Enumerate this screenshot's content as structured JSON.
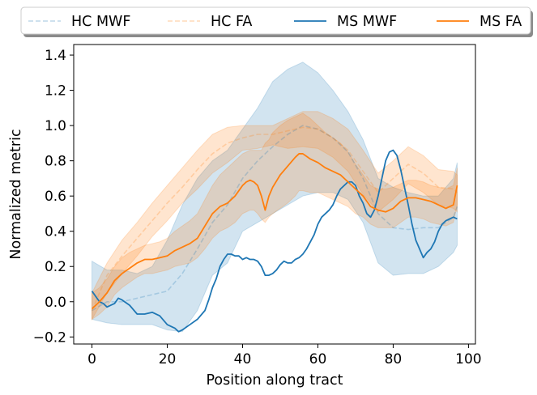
{
  "chart_data": {
    "type": "line",
    "xlabel": "Position along tract",
    "ylabel": "Normalized metric",
    "xlim": [
      -4.85,
      101.85
    ],
    "ylim": [
      -0.24,
      1.46
    ],
    "xticks": [
      "0",
      "20",
      "40",
      "60",
      "80",
      "100"
    ],
    "xtick_values": [
      0,
      20,
      40,
      60,
      80,
      100
    ],
    "yticks": [
      "−0.2",
      "0.0",
      "0.2",
      "0.4",
      "0.6",
      "0.8",
      "1.0",
      "1.2",
      "1.4"
    ],
    "ytick_values": [
      -0.2,
      0,
      0.2,
      0.4,
      0.6,
      0.8,
      1.0,
      1.2,
      1.4
    ],
    "grid": false,
    "legend_position": "top, outside axes, single row",
    "colors": {
      "blue": "#1f77b4",
      "orange": "#ff7f0e"
    },
    "series": [
      {
        "name": "HC MWF",
        "color": "#1f77b4",
        "style": "dashed",
        "line_alpha": 0.25,
        "x": [
          0,
          4,
          8,
          12,
          16,
          20,
          24,
          28,
          32,
          36,
          40,
          44,
          48,
          52,
          56,
          60,
          64,
          68,
          72,
          76,
          80,
          84,
          88,
          92,
          96,
          97
        ],
        "y": [
          -0.05,
          0.0,
          0.0,
          0.02,
          0.04,
          0.06,
          0.16,
          0.3,
          0.45,
          0.55,
          0.7,
          0.8,
          0.88,
          0.95,
          1.0,
          0.98,
          0.93,
          0.85,
          0.7,
          0.5,
          0.42,
          0.41,
          0.42,
          0.42,
          0.48,
          0.54
        ],
        "band_upper": [
          0.23,
          0.18,
          0.18,
          0.16,
          0.2,
          0.35,
          0.55,
          0.7,
          0.8,
          0.86,
          0.98,
          1.1,
          1.25,
          1.32,
          1.36,
          1.3,
          1.2,
          1.08,
          0.92,
          0.7,
          0.65,
          0.62,
          0.6,
          0.6,
          0.7,
          0.79
        ],
        "band_lower": [
          -0.1,
          -0.12,
          -0.13,
          -0.13,
          -0.13,
          -0.16,
          -0.17,
          -0.05,
          0.15,
          0.22,
          0.4,
          0.45,
          0.5,
          0.55,
          0.6,
          0.62,
          0.62,
          0.58,
          0.45,
          0.22,
          0.15,
          0.16,
          0.16,
          0.2,
          0.28,
          0.32
        ],
        "band_alpha": 0.2
      },
      {
        "name": "HC FA",
        "color": "#ff7f0e",
        "style": "dashed",
        "line_alpha": 0.25,
        "x": [
          0,
          4,
          8,
          12,
          16,
          20,
          24,
          28,
          32,
          36,
          40,
          44,
          48,
          52,
          56,
          60,
          64,
          68,
          72,
          76,
          80,
          84,
          88,
          92,
          96,
          97
        ],
        "y": [
          -0.05,
          0.15,
          0.26,
          0.36,
          0.46,
          0.56,
          0.65,
          0.75,
          0.84,
          0.9,
          0.93,
          0.95,
          0.95,
          0.97,
          0.99,
          0.98,
          0.93,
          0.86,
          0.74,
          0.62,
          0.7,
          0.78,
          0.73,
          0.65,
          0.64,
          0.62
        ],
        "band_upper": [
          0.05,
          0.22,
          0.35,
          0.45,
          0.56,
          0.66,
          0.76,
          0.86,
          0.95,
          0.99,
          1.0,
          1.0,
          1.0,
          1.04,
          1.08,
          1.08,
          1.04,
          0.98,
          0.86,
          0.73,
          0.8,
          0.88,
          0.83,
          0.75,
          0.74,
          0.72
        ],
        "band_lower": [
          -0.1,
          0.05,
          0.16,
          0.26,
          0.37,
          0.46,
          0.56,
          0.64,
          0.73,
          0.79,
          0.86,
          0.87,
          0.89,
          0.87,
          0.88,
          0.87,
          0.82,
          0.74,
          0.61,
          0.51,
          0.58,
          0.67,
          0.62,
          0.55,
          0.53,
          0.51
        ],
        "band_alpha": 0.2
      },
      {
        "name": "MS MWF",
        "color": "#1f77b4",
        "style": "solid",
        "line_alpha": 1.0,
        "x": [
          0,
          2,
          3,
          4,
          5,
          6,
          7,
          8,
          10,
          12,
          14,
          16,
          18,
          20,
          22,
          23,
          24,
          26,
          28,
          30,
          31,
          32,
          33,
          34,
          35,
          36,
          37,
          38,
          39,
          40,
          41,
          42,
          43,
          44,
          45,
          46,
          47,
          48,
          49,
          50,
          51,
          52,
          53,
          54,
          55,
          56,
          57,
          58,
          59,
          60,
          61,
          62,
          63,
          64,
          65,
          66,
          67,
          68,
          69,
          70,
          71,
          72,
          73,
          74,
          75,
          76,
          77,
          78,
          79,
          80,
          81,
          82,
          83,
          84,
          85,
          86,
          87,
          88,
          89,
          90,
          91,
          92,
          93,
          94,
          95,
          96,
          97
        ],
        "y": [
          0.06,
          0.0,
          -0.01,
          -0.03,
          -0.02,
          -0.01,
          0.02,
          0.01,
          -0.02,
          -0.07,
          -0.07,
          -0.06,
          -0.08,
          -0.13,
          -0.15,
          -0.17,
          -0.16,
          -0.13,
          -0.1,
          -0.05,
          0.01,
          0.08,
          0.13,
          0.2,
          0.24,
          0.27,
          0.27,
          0.26,
          0.26,
          0.24,
          0.25,
          0.24,
          0.24,
          0.23,
          0.2,
          0.15,
          0.15,
          0.16,
          0.18,
          0.21,
          0.23,
          0.22,
          0.22,
          0.24,
          0.25,
          0.27,
          0.3,
          0.34,
          0.38,
          0.44,
          0.48,
          0.5,
          0.52,
          0.55,
          0.6,
          0.64,
          0.66,
          0.68,
          0.68,
          0.66,
          0.6,
          0.56,
          0.5,
          0.48,
          0.52,
          0.6,
          0.7,
          0.8,
          0.85,
          0.86,
          0.83,
          0.75,
          0.65,
          0.55,
          0.44,
          0.35,
          0.3,
          0.25,
          0.28,
          0.3,
          0.34,
          0.4,
          0.44,
          0.46,
          0.47,
          0.48,
          0.47
        ],
        "band_alpha": 0
      },
      {
        "name": "MS FA",
        "color": "#ff7f0e",
        "style": "solid",
        "line_alpha": 1.0,
        "x": [
          0,
          2,
          4,
          6,
          8,
          10,
          12,
          14,
          16,
          18,
          20,
          22,
          24,
          26,
          28,
          30,
          32,
          34,
          36,
          38,
          40,
          41,
          42,
          43,
          44,
          45,
          46,
          47,
          48,
          50,
          52,
          54,
          55,
          56,
          58,
          60,
          62,
          64,
          66,
          68,
          70,
          72,
          74,
          76,
          78,
          80,
          82,
          84,
          86,
          88,
          90,
          92,
          94,
          96,
          97
        ],
        "y": [
          -0.04,
          0.0,
          0.05,
          0.12,
          0.16,
          0.19,
          0.22,
          0.24,
          0.24,
          0.25,
          0.26,
          0.29,
          0.31,
          0.33,
          0.36,
          0.43,
          0.5,
          0.54,
          0.56,
          0.6,
          0.66,
          0.68,
          0.69,
          0.68,
          0.66,
          0.6,
          0.52,
          0.6,
          0.65,
          0.72,
          0.77,
          0.82,
          0.84,
          0.84,
          0.81,
          0.79,
          0.76,
          0.74,
          0.72,
          0.68,
          0.64,
          0.6,
          0.54,
          0.52,
          0.51,
          0.53,
          0.57,
          0.59,
          0.59,
          0.58,
          0.57,
          0.55,
          0.53,
          0.55,
          0.66
        ],
        "band_upper": [
          0.05,
          0.08,
          0.13,
          0.2,
          0.25,
          0.28,
          0.3,
          0.32,
          0.33,
          0.34,
          0.36,
          0.4,
          0.43,
          0.46,
          0.5,
          0.58,
          0.66,
          0.72,
          0.76,
          0.8,
          0.84,
          0.85,
          0.86,
          0.86,
          0.86,
          0.86,
          0.9,
          0.92,
          0.96,
          1.0,
          1.03,
          1.05,
          1.06,
          1.07,
          1.04,
          1.0,
          0.96,
          0.93,
          0.9,
          0.85,
          0.78,
          0.72,
          0.66,
          0.64,
          0.64,
          0.65,
          0.67,
          0.69,
          0.69,
          0.68,
          0.66,
          0.65,
          0.64,
          0.66,
          0.76
        ],
        "band_lower": [
          -0.1,
          -0.07,
          -0.03,
          0.04,
          0.08,
          0.11,
          0.14,
          0.16,
          0.16,
          0.17,
          0.18,
          0.2,
          0.21,
          0.22,
          0.25,
          0.3,
          0.36,
          0.4,
          0.42,
          0.45,
          0.5,
          0.51,
          0.52,
          0.52,
          0.5,
          0.47,
          0.45,
          0.48,
          0.5,
          0.53,
          0.56,
          0.6,
          0.63,
          0.63,
          0.62,
          0.62,
          0.6,
          0.58,
          0.56,
          0.54,
          0.5,
          0.48,
          0.44,
          0.42,
          0.42,
          0.42,
          0.45,
          0.48,
          0.48,
          0.47,
          0.45,
          0.44,
          0.43,
          0.45,
          0.55
        ],
        "band_alpha": 0.2
      }
    ]
  }
}
